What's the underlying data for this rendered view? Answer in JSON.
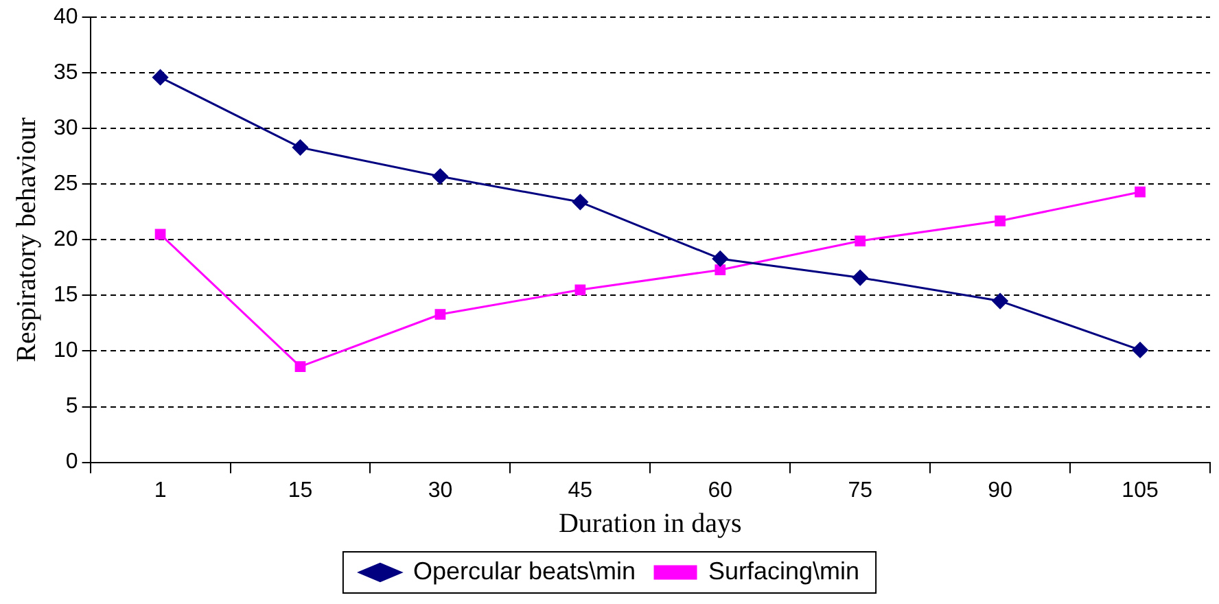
{
  "chart_data": {
    "type": "line",
    "xlabel": "Duration in days",
    "ylabel": "Respiratory behaviour",
    "categories": [
      "1",
      "15",
      "30",
      "45",
      "60",
      "75",
      "90",
      "105"
    ],
    "ylim": [
      0,
      40
    ],
    "yticks": [
      0,
      5,
      10,
      15,
      20,
      25,
      30,
      35,
      40
    ],
    "grid": "y",
    "legend": "bottom",
    "line_style": "solid",
    "series": [
      {
        "name": "Opercular beats\\min",
        "color": "#000080",
        "marker": "diamond",
        "values": [
          34.6,
          28.3,
          25.7,
          23.4,
          18.3,
          16.6,
          14.5,
          10.1
        ]
      },
      {
        "name": "Surfacing\\min",
        "color": "#ff00ff",
        "marker": "square",
        "values": [
          20.5,
          8.6,
          13.3,
          15.5,
          17.3,
          19.9,
          21.7,
          24.3
        ]
      }
    ]
  }
}
